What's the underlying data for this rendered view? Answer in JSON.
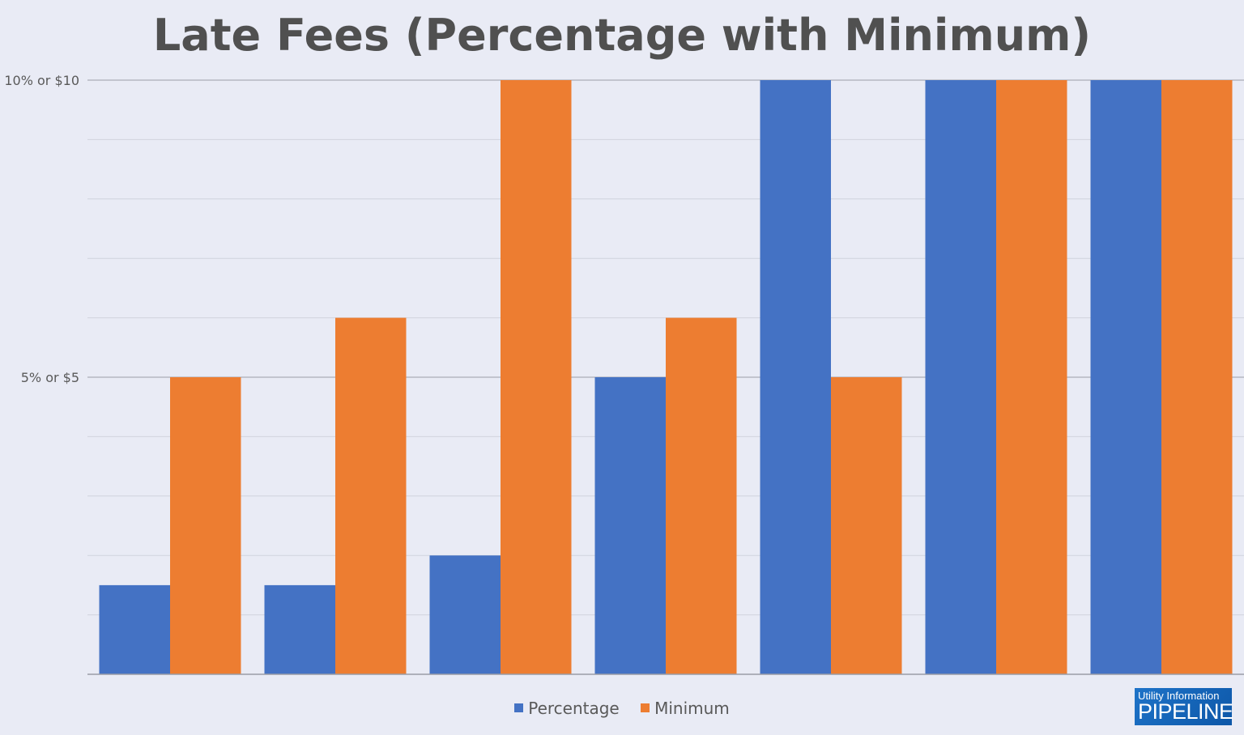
{
  "chart_data": {
    "type": "bar",
    "title": "Late Fees (Percentage with Minimum)",
    "categories": [
      "",
      "",
      "",
      "",
      "",
      "",
      ""
    ],
    "series": [
      {
        "name": "Percentage",
        "color": "#4472c4",
        "values": [
          1.5,
          1.5,
          2,
          5,
          10,
          10,
          10
        ]
      },
      {
        "name": "Minimum",
        "color": "#ed7d31",
        "values": [
          5,
          6,
          10,
          6,
          5,
          10,
          10
        ]
      }
    ],
    "ylim": [
      0,
      10
    ],
    "yticks": [
      {
        "value": 10,
        "label": "10% or $10"
      },
      {
        "value": 5,
        "label": "5% or $5"
      }
    ],
    "minor_grid_step": 1,
    "grid": true,
    "legend": "bottom"
  },
  "logo": {
    "line1": "Utility Information",
    "line2": "PIPELINE"
  }
}
